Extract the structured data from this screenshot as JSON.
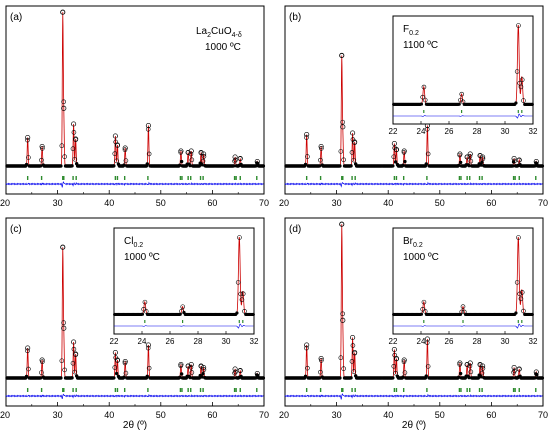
{
  "figure": {
    "background": "#ffffff"
  },
  "colors": {
    "observed": "#000000",
    "calculated": "#cc0000",
    "difference": "#0000ee",
    "bragg": "#2e8b2e",
    "frame": "#000000"
  },
  "chart_data": [
    {
      "type": "line",
      "panel_label": "(a)",
      "annotation": {
        "formula": "La",
        "sub1": "2",
        "mid": "CuO",
        "sub2": "4-δ",
        "temperature": "1000 ºC"
      },
      "xlabel": "",
      "xlim": [
        20,
        70
      ],
      "xticks": [
        "20",
        "30",
        "40",
        "50",
        "60",
        "70"
      ],
      "series": [
        {
          "name": "",
          "kind": "observed"
        },
        {
          "name": "",
          "kind": "calculated"
        },
        {
          "name": "",
          "kind": "difference"
        },
        {
          "name": "",
          "kind": "bragg_positions"
        }
      ],
      "peaks": [
        {
          "x": 24.2,
          "h": 0.19
        },
        {
          "x": 27.0,
          "h": 0.13
        },
        {
          "x": 31.0,
          "h": 1.0
        },
        {
          "x": 31.2,
          "h": 0.3
        },
        {
          "x": 33.1,
          "h": 0.28
        },
        {
          "x": 33.5,
          "h": 0.18
        },
        {
          "x": 41.2,
          "h": 0.2
        },
        {
          "x": 41.6,
          "h": 0.14
        },
        {
          "x": 43.1,
          "h": 0.12
        },
        {
          "x": 47.6,
          "h": 0.27
        },
        {
          "x": 53.9,
          "h": 0.1
        },
        {
          "x": 55.3,
          "h": 0.09
        },
        {
          "x": 55.9,
          "h": 0.1
        },
        {
          "x": 57.8,
          "h": 0.09
        },
        {
          "x": 58.3,
          "h": 0.08
        },
        {
          "x": 64.4,
          "h": 0.06
        },
        {
          "x": 65.4,
          "h": 0.05
        },
        {
          "x": 68.7,
          "h": 0.03
        }
      ],
      "bragg_positions": [
        24.2,
        26.9,
        31.0,
        31.2,
        33.0,
        33.6,
        41.2,
        41.6,
        43.0,
        47.5,
        53.8,
        54.1,
        55.3,
        55.8,
        57.7,
        58.2,
        64.3,
        64.6,
        65.4,
        68.6
      ],
      "inset": null
    },
    {
      "type": "line",
      "panel_label": "(b)",
      "annotation": {
        "formula": "F",
        "sub1": "0.2",
        "mid": "",
        "sub2": "",
        "temperature": "1100 ºC"
      },
      "xlabel": "",
      "xlim": [
        20,
        70
      ],
      "xticks": [
        "20",
        "30",
        "40",
        "50",
        "60",
        "70"
      ],
      "series": [
        {
          "name": "",
          "kind": "observed"
        },
        {
          "name": "",
          "kind": "calculated"
        },
        {
          "name": "",
          "kind": "difference"
        },
        {
          "name": "",
          "kind": "bragg_positions"
        }
      ],
      "peaks": [
        {
          "x": 24.2,
          "h": 0.21
        },
        {
          "x": 27.0,
          "h": 0.13
        },
        {
          "x": 31.0,
          "h": 0.72
        },
        {
          "x": 31.2,
          "h": 0.2
        },
        {
          "x": 33.1,
          "h": 0.22
        },
        {
          "x": 33.5,
          "h": 0.16
        },
        {
          "x": 41.2,
          "h": 0.15
        },
        {
          "x": 41.6,
          "h": 0.11
        },
        {
          "x": 43.1,
          "h": 0.1
        },
        {
          "x": 47.6,
          "h": 0.27
        },
        {
          "x": 53.9,
          "h": 0.08
        },
        {
          "x": 55.3,
          "h": 0.06
        },
        {
          "x": 55.9,
          "h": 0.08
        },
        {
          "x": 57.8,
          "h": 0.07
        },
        {
          "x": 58.3,
          "h": 0.06
        },
        {
          "x": 64.4,
          "h": 0.05
        },
        {
          "x": 65.4,
          "h": 0.04
        },
        {
          "x": 68.7,
          "h": 0.03
        }
      ],
      "bragg_positions": [
        24.2,
        26.9,
        31.0,
        31.2,
        33.0,
        33.6,
        41.2,
        41.6,
        43.0,
        47.5,
        53.8,
        54.1,
        55.3,
        55.8,
        57.7,
        58.2,
        64.3,
        64.6,
        65.4,
        68.6
      ],
      "inset": {
        "xlim": [
          22,
          32
        ],
        "xticks": [
          "22",
          "24",
          "26",
          "28",
          "30",
          "32"
        ],
        "peaks": [
          {
            "x": 24.2,
            "h": 0.22
          },
          {
            "x": 26.9,
            "h": 0.13
          },
          {
            "x": 30.95,
            "h": 1.0
          },
          {
            "x": 31.2,
            "h": 0.35
          }
        ]
      }
    },
    {
      "type": "line",
      "panel_label": "(c)",
      "annotation": {
        "formula": "Cl",
        "sub1": "0.2",
        "mid": "",
        "sub2": "",
        "temperature": "1000 ºC"
      },
      "xlabel": "2θ (º)",
      "xlim": [
        20,
        70
      ],
      "xticks": [
        "20",
        "30",
        "40",
        "50",
        "60",
        "70"
      ],
      "series": [
        {
          "name": "",
          "kind": "observed"
        },
        {
          "name": "",
          "kind": "calculated"
        },
        {
          "name": "",
          "kind": "difference"
        },
        {
          "name": "",
          "kind": "bragg_positions"
        }
      ],
      "peaks": [
        {
          "x": 24.2,
          "h": 0.2
        },
        {
          "x": 27.0,
          "h": 0.12
        },
        {
          "x": 31.0,
          "h": 0.85
        },
        {
          "x": 31.2,
          "h": 0.26
        },
        {
          "x": 33.1,
          "h": 0.24
        },
        {
          "x": 33.5,
          "h": 0.16
        },
        {
          "x": 41.2,
          "h": 0.17
        },
        {
          "x": 41.6,
          "h": 0.12
        },
        {
          "x": 43.1,
          "h": 0.11
        },
        {
          "x": 47.6,
          "h": 0.22
        },
        {
          "x": 53.9,
          "h": 0.09
        },
        {
          "x": 55.3,
          "h": 0.08
        },
        {
          "x": 55.9,
          "h": 0.09
        },
        {
          "x": 57.8,
          "h": 0.08
        },
        {
          "x": 58.3,
          "h": 0.07
        },
        {
          "x": 64.4,
          "h": 0.06
        },
        {
          "x": 65.4,
          "h": 0.05
        },
        {
          "x": 68.7,
          "h": 0.03
        }
      ],
      "bragg_positions": [
        24.2,
        26.9,
        31.0,
        31.2,
        33.0,
        33.6,
        41.2,
        41.6,
        43.0,
        47.5,
        53.8,
        54.1,
        55.3,
        55.8,
        57.7,
        58.2,
        64.3,
        64.6,
        65.4,
        68.6
      ],
      "inset": {
        "xlim": [
          22,
          32
        ],
        "xticks": [
          "22",
          "24",
          "26",
          "28",
          "30",
          "32"
        ],
        "peaks": [
          {
            "x": 24.2,
            "h": 0.16
          },
          {
            "x": 26.9,
            "h": 0.1
          },
          {
            "x": 30.95,
            "h": 1.0
          },
          {
            "x": 31.2,
            "h": 0.3
          }
        ]
      }
    },
    {
      "type": "line",
      "panel_label": "(d)",
      "annotation": {
        "formula": "Br",
        "sub1": "0.2",
        "mid": "",
        "sub2": "",
        "temperature": "1000 ºC"
      },
      "xlabel": "2θ (º)",
      "xlim": [
        20,
        70
      ],
      "xticks": [
        "20",
        "30",
        "40",
        "50",
        "60",
        "70"
      ],
      "series": [
        {
          "name": "",
          "kind": "observed"
        },
        {
          "name": "",
          "kind": "calculated"
        },
        {
          "name": "",
          "kind": "difference"
        },
        {
          "name": "",
          "kind": "bragg_positions"
        }
      ],
      "peaks": [
        {
          "x": 24.2,
          "h": 0.22
        },
        {
          "x": 27.0,
          "h": 0.13
        },
        {
          "x": 31.0,
          "h": 1.0
        },
        {
          "x": 31.2,
          "h": 0.3
        },
        {
          "x": 33.1,
          "h": 0.27
        },
        {
          "x": 33.5,
          "h": 0.17
        },
        {
          "x": 41.2,
          "h": 0.19
        },
        {
          "x": 41.6,
          "h": 0.13
        },
        {
          "x": 43.1,
          "h": 0.12
        },
        {
          "x": 47.6,
          "h": 0.26
        },
        {
          "x": 53.9,
          "h": 0.1
        },
        {
          "x": 55.3,
          "h": 0.09
        },
        {
          "x": 55.9,
          "h": 0.1
        },
        {
          "x": 57.8,
          "h": 0.09
        },
        {
          "x": 58.3,
          "h": 0.08
        },
        {
          "x": 64.4,
          "h": 0.07
        },
        {
          "x": 65.4,
          "h": 0.06
        },
        {
          "x": 68.7,
          "h": 0.04
        }
      ],
      "bragg_positions": [
        24.2,
        26.9,
        31.0,
        31.2,
        33.0,
        33.6,
        41.2,
        41.6,
        43.0,
        47.5,
        53.8,
        54.1,
        55.3,
        55.8,
        57.7,
        58.2,
        64.3,
        64.6,
        65.4,
        68.6
      ],
      "inset": {
        "xlim": [
          22,
          32
        ],
        "xticks": [
          "22",
          "24",
          "26",
          "28",
          "30",
          "32"
        ],
        "peaks": [
          {
            "x": 24.2,
            "h": 0.16
          },
          {
            "x": 27.0,
            "h": 0.1
          },
          {
            "x": 30.95,
            "h": 1.0
          },
          {
            "x": 31.2,
            "h": 0.32
          }
        ]
      }
    }
  ]
}
